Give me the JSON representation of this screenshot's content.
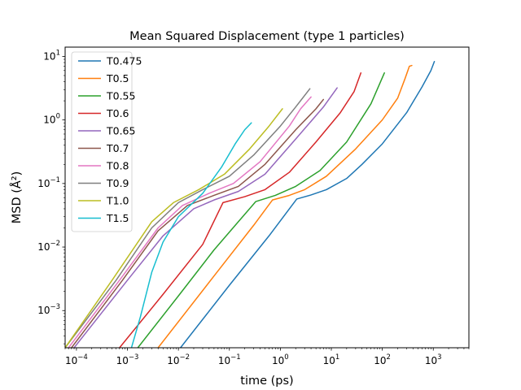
{
  "chart_data": {
    "type": "line",
    "title": "Mean Squared Displacement (type 1 particles)",
    "xlabel": "time (ps)",
    "ylabel": "MSD (Å²)",
    "xscale": "log",
    "yscale": "log",
    "xlim": [
      6e-05,
      5000
    ],
    "ylim": [
      0.00026,
      14
    ],
    "x_ticks": [
      {
        "value": 0.0001,
        "base": "10",
        "exp": "−4"
      },
      {
        "value": 0.001,
        "base": "10",
        "exp": "−3"
      },
      {
        "value": 0.01,
        "base": "10",
        "exp": "−2"
      },
      {
        "value": 0.1,
        "base": "10",
        "exp": "−1"
      },
      {
        "value": 1,
        "base": "10",
        "exp": "0"
      },
      {
        "value": 10,
        "base": "10",
        "exp": "1"
      },
      {
        "value": 100,
        "base": "10",
        "exp": "2"
      },
      {
        "value": 1000,
        "base": "10",
        "exp": "3"
      }
    ],
    "y_ticks": [
      {
        "value": 0.001,
        "base": "10",
        "exp": "−3"
      },
      {
        "value": 0.01,
        "base": "10",
        "exp": "−2"
      },
      {
        "value": 0.1,
        "base": "10",
        "exp": "−1"
      },
      {
        "value": 1,
        "base": "10",
        "exp": "0"
      },
      {
        "value": 10,
        "base": "10",
        "exp": "1"
      }
    ],
    "grid": false,
    "legend_position": "upper-left",
    "series": [
      {
        "name": "T0.475",
        "color": "#1f77b4",
        "points": [
          [
            0.011,
            0.00026
          ],
          [
            0.1,
            0.0025
          ],
          [
            0.6,
            0.015
          ],
          [
            2.1,
            0.057
          ],
          [
            4,
            0.066
          ],
          [
            8,
            0.08
          ],
          [
            20,
            0.12
          ],
          [
            40,
            0.2
          ],
          [
            100,
            0.42
          ],
          [
            300,
            1.3
          ],
          [
            600,
            3.3
          ],
          [
            900,
            6
          ],
          [
            1050,
            8.3
          ]
        ]
      },
      {
        "name": "T0.5",
        "color": "#ff7f0e",
        "points": [
          [
            0.004,
            0.00026
          ],
          [
            0.05,
            0.0035
          ],
          [
            0.3,
            0.022
          ],
          [
            0.7,
            0.055
          ],
          [
            1.5,
            0.065
          ],
          [
            3,
            0.08
          ],
          [
            8,
            0.13
          ],
          [
            30,
            0.35
          ],
          [
            100,
            1.0
          ],
          [
            200,
            2.2
          ],
          [
            280,
            4.5
          ],
          [
            340,
            7.0
          ],
          [
            380,
            7.2
          ]
        ]
      },
      {
        "name": "T0.55",
        "color": "#2ca02c",
        "points": [
          [
            0.0016,
            0.00026
          ],
          [
            0.01,
            0.0017
          ],
          [
            0.05,
            0.009
          ],
          [
            0.15,
            0.025
          ],
          [
            0.33,
            0.052
          ],
          [
            0.8,
            0.065
          ],
          [
            2,
            0.09
          ],
          [
            6,
            0.16
          ],
          [
            20,
            0.45
          ],
          [
            60,
            1.8
          ],
          [
            110,
            5.5
          ]
        ]
      },
      {
        "name": "T0.6",
        "color": "#d62728",
        "points": [
          [
            0.0007,
            0.00026
          ],
          [
            0.005,
            0.0018
          ],
          [
            0.03,
            0.011
          ],
          [
            0.075,
            0.05
          ],
          [
            0.2,
            0.062
          ],
          [
            0.5,
            0.08
          ],
          [
            1.5,
            0.15
          ],
          [
            5,
            0.45
          ],
          [
            15,
            1.3
          ],
          [
            28,
            2.8
          ],
          [
            38,
            5.5
          ]
        ]
      },
      {
        "name": "T0.65",
        "color": "#9467bd",
        "points": [
          [
            9e-05,
            0.00026
          ],
          [
            0.001,
            0.003
          ],
          [
            0.005,
            0.015
          ],
          [
            0.02,
            0.04
          ],
          [
            0.05,
            0.055
          ],
          [
            0.15,
            0.075
          ],
          [
            0.5,
            0.14
          ],
          [
            2,
            0.5
          ],
          [
            7,
            1.6
          ],
          [
            13,
            3.2
          ]
        ]
      },
      {
        "name": "T0.7",
        "color": "#8c564b",
        "points": [
          [
            8e-05,
            0.00026
          ],
          [
            0.0008,
            0.003
          ],
          [
            0.004,
            0.018
          ],
          [
            0.015,
            0.045
          ],
          [
            0.05,
            0.065
          ],
          [
            0.15,
            0.09
          ],
          [
            0.5,
            0.2
          ],
          [
            2,
            0.7
          ],
          [
            5,
            1.5
          ],
          [
            7,
            2.1
          ]
        ]
      },
      {
        "name": "T0.8",
        "color": "#e377c2",
        "points": [
          [
            7e-05,
            0.00026
          ],
          [
            0.0007,
            0.003
          ],
          [
            0.004,
            0.02
          ],
          [
            0.012,
            0.045
          ],
          [
            0.04,
            0.07
          ],
          [
            0.12,
            0.1
          ],
          [
            0.4,
            0.22
          ],
          [
            1.5,
            0.8
          ],
          [
            2.5,
            1.5
          ],
          [
            4,
            2.3
          ]
        ]
      },
      {
        "name": "T0.9",
        "color": "#7f7f7f",
        "points": [
          [
            6e-05,
            0.00026
          ],
          [
            0.0006,
            0.003
          ],
          [
            0.003,
            0.02
          ],
          [
            0.01,
            0.05
          ],
          [
            0.03,
            0.08
          ],
          [
            0.1,
            0.13
          ],
          [
            0.3,
            0.28
          ],
          [
            1,
            0.8
          ],
          [
            2,
            1.6
          ],
          [
            3.8,
            3.1
          ]
        ]
      },
      {
        "name": "T1.0",
        "color": "#bcbd22",
        "points": [
          [
            6e-05,
            0.00026
          ],
          [
            0.0005,
            0.003
          ],
          [
            0.003,
            0.025
          ],
          [
            0.008,
            0.05
          ],
          [
            0.025,
            0.08
          ],
          [
            0.08,
            0.14
          ],
          [
            0.25,
            0.35
          ],
          [
            0.6,
            0.8
          ],
          [
            1.1,
            1.5
          ]
        ]
      },
      {
        "name": "T1.5",
        "color": "#17becf",
        "points": [
          [
            0.0012,
            0.00026
          ],
          [
            0.0018,
            0.0008
          ],
          [
            0.003,
            0.004
          ],
          [
            0.005,
            0.012
          ],
          [
            0.01,
            0.03
          ],
          [
            0.03,
            0.07
          ],
          [
            0.07,
            0.18
          ],
          [
            0.13,
            0.42
          ],
          [
            0.2,
            0.7
          ],
          [
            0.27,
            0.9
          ]
        ]
      }
    ]
  }
}
